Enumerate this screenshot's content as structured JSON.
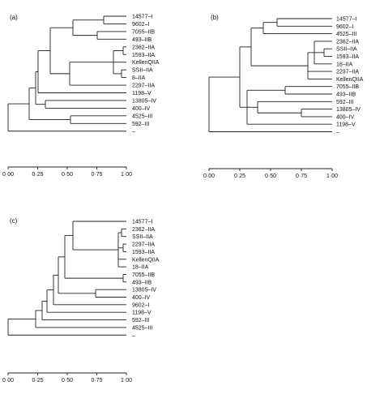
{
  "figure": {
    "panels": [
      {
        "id": "a",
        "tag": "(a)",
        "leaves": [
          "14577–I",
          "9602–I",
          "7055–IIB",
          "493–IIB",
          "2362–IIA",
          "1593–IIA",
          "KellenQIIA",
          "SSII–IIA",
          "8–IIA",
          "2297–IIA",
          "1198–V",
          "13805–IV",
          "400–IV",
          "4525–III",
          "592–III",
          "–"
        ],
        "axis_ticks": [
          "0·00",
          "0·25",
          "0·50",
          "0·75",
          "1·00"
        ]
      },
      {
        "id": "b",
        "tag": "(b)",
        "leaves": [
          "14577–I",
          "9602–I",
          "4525–III",
          "2362–IIA",
          "SSII–IIA",
          "1593–IIA",
          "18–IIA",
          "2297–IIA",
          "KellenQIIA",
          "7055–IIB",
          "493–IIB",
          "592–III",
          "13805–IV",
          "400–IV",
          "1198–V",
          "–"
        ],
        "axis_ticks": [
          "0·00",
          "0·25",
          "0·50",
          "0·75",
          "1·00"
        ]
      },
      {
        "id": "c",
        "tag": "(c)",
        "leaves": [
          "14577–I",
          "2362–IIA",
          "SSII–IIA",
          "2297–IIA",
          "1593–IIA",
          "KellenQIIA",
          "18–IIA",
          "7055–IIB",
          "493–IIB",
          "13805–IV",
          "400–IV",
          "9602–I",
          "1198–V",
          "592–III",
          "4525–III",
          "–"
        ],
        "axis_ticks": [
          "0·00",
          "0·25",
          "0·50",
          "0·75",
          "1·00"
        ]
      }
    ]
  }
}
